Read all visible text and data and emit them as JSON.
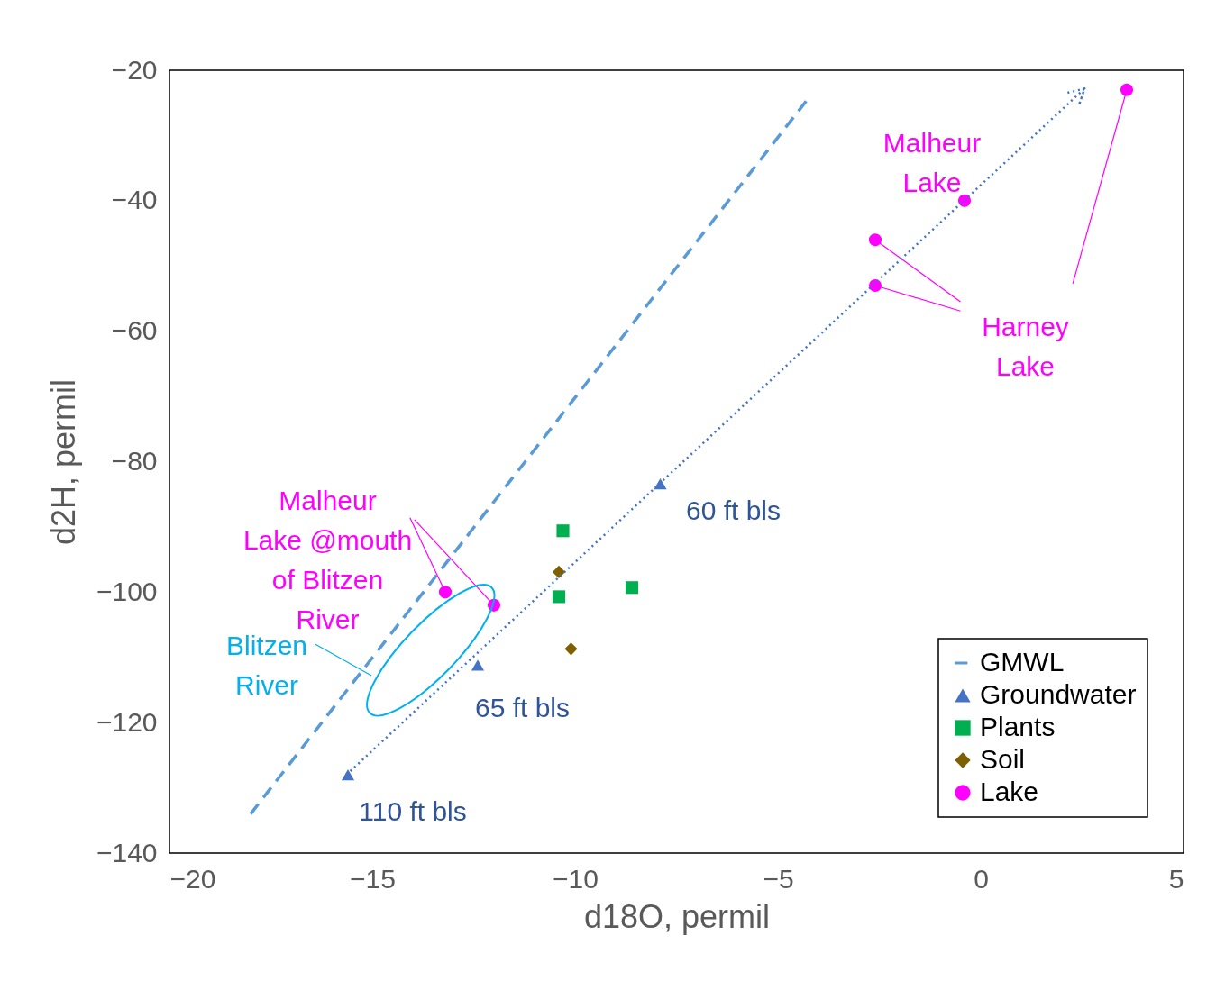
{
  "chart_data": {
    "type": "scatter",
    "xlabel": "d18O, permil",
    "ylabel": "d2H, permil",
    "xlim": [
      -20,
      5
    ],
    "ylim": [
      -140,
      -20
    ],
    "xticks": [
      -20,
      -15,
      -10,
      -5,
      0,
      5
    ],
    "yticks": [
      -140,
      -120,
      -100,
      -80,
      -60,
      -40,
      -20
    ],
    "grid": false,
    "legend": "bottom right",
    "series": [
      {
        "name": "GMWL",
        "type": "line",
        "color": "#5b9bd5",
        "line_style": "dashed",
        "marker": "none",
        "x": [
          -18,
          -4.3
        ],
        "values": [
          -134,
          -24.7
        ]
      },
      {
        "name": "Groundwater",
        "color": "#4472c4",
        "marker": "triangle",
        "x": [
          -15.6,
          -12.4,
          -7.9
        ],
        "values": [
          -128,
          -111.2,
          -83.4
        ]
      },
      {
        "name": "Plants",
        "color": "#00b050",
        "marker": "square",
        "x": [
          -10.3,
          -10.4,
          -8.6
        ],
        "values": [
          -90.6,
          -100.7,
          -99.3
        ]
      },
      {
        "name": "Soil",
        "color": "#7f6000",
        "marker": "diamond",
        "x": [
          -10.4,
          -10.1
        ],
        "values": [
          -96.9,
          -108.7
        ]
      },
      {
        "name": "Lake",
        "color": "#ff00ff",
        "marker": "circle",
        "x": [
          -13.2,
          -12,
          -2.6,
          -2.6,
          -0.4,
          3.6
        ],
        "values": [
          -100,
          -102,
          -46,
          -53,
          -40,
          -23
        ]
      }
    ],
    "annotations": [
      "Malheur\nLake",
      {
        "text": "Harney\nLake",
        "x": -2.6,
        "y": -46
      },
      {
        "text": "Malheur\nLake @mouth\nof Blitzen\nRiver",
        "x": -13.2,
        "y": -100
      },
      "Blitzen\nRiver",
      "60 ft bls",
      "65 ft bls",
      "110 ft bls"
    ]
  }
}
